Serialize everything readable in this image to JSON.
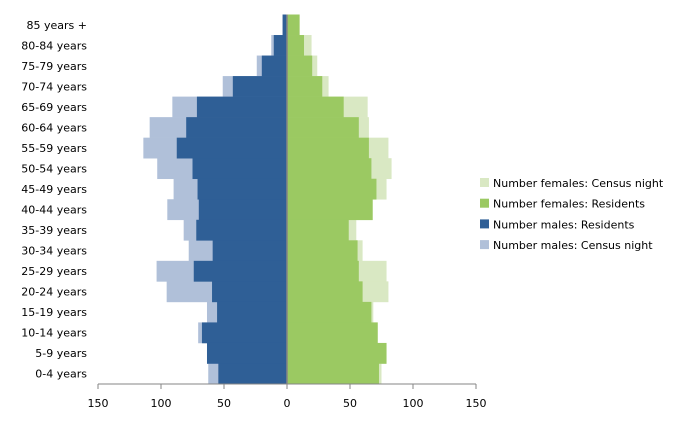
{
  "chart_data": {
    "type": "bar",
    "orientation": "horizontal-population-pyramid",
    "categories": [
      "85 years +",
      "80-84 years",
      "75-79 years",
      "70-74 years",
      "65-69 years",
      "60-64 years",
      "55-59 years",
      "50-54 years",
      "45-49 years",
      "40-44 years",
      "35-39 years",
      "30-34 years",
      "25-29 years",
      "20-24 years",
      "15-19 years",
      "10-14 years",
      "5-9 years",
      "0-4 years"
    ],
    "series": [
      {
        "name": "Number females: Census night",
        "side": "right",
        "color": "#D9E8C3",
        "values": [
          10,
          19.5,
          24,
          33,
          64,
          65,
          80.5,
          83,
          79,
          68,
          55,
          60,
          79,
          80.5,
          68.5,
          72,
          79,
          75
        ]
      },
      {
        "name": "Number females: Residents",
        "side": "right",
        "color": "#9BC962",
        "values": [
          10,
          13.5,
          20,
          28,
          45,
          57,
          65,
          67,
          71,
          68,
          49,
          56,
          57,
          60,
          67,
          72,
          79,
          73
        ]
      },
      {
        "name": "Number males: Residents",
        "side": "left",
        "color": "#2F5F96",
        "values": [
          3.5,
          10.5,
          20,
          43,
          71.5,
          80,
          87.5,
          75,
          71,
          70,
          72,
          59,
          74,
          59.5,
          55.5,
          67.5,
          63.5,
          54.5
        ]
      },
      {
        "name": "Number males: Census night",
        "side": "left",
        "color": "#B0C0D9",
        "values": [
          3.5,
          12.5,
          24,
          51,
          91,
          109,
          114,
          103,
          90,
          95,
          82,
          78,
          103.5,
          95.5,
          63.5,
          70.5,
          63.5,
          62.5
        ]
      }
    ],
    "xlim": [
      -150,
      150
    ],
    "x_tick_labels": [
      "150",
      "100",
      "50",
      "0",
      "50",
      "100",
      "150"
    ],
    "x_tick_values": [
      -150,
      -100,
      -50,
      0,
      50,
      100,
      150
    ],
    "grid": false,
    "legend_position": "right",
    "title": "",
    "xlabel": "",
    "ylabel": ""
  }
}
